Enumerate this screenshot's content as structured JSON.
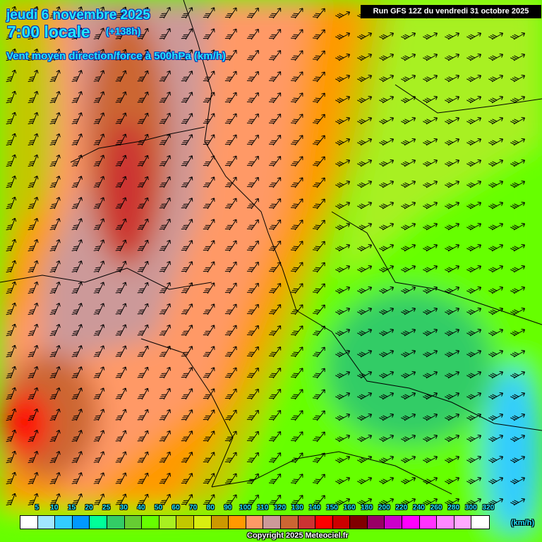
{
  "header": {
    "date": "jeudi 6 novembre 2025",
    "time": "7:00 locale",
    "offset": "(+138h)",
    "parameter": "Vent moyen direction/force à 500hPa (km/h)",
    "run": "Run GFS 12Z du vendredi 31 octobre 2025"
  },
  "legend": {
    "labels": [
      "5",
      "10",
      "15",
      "20",
      "25",
      "30",
      "40",
      "50",
      "60",
      "70",
      "80",
      "90",
      "100",
      "110",
      "120",
      "130",
      "140",
      "150",
      "160",
      "180",
      "200",
      "220",
      "240",
      "260",
      "280",
      "300",
      "320"
    ],
    "colors": [
      "#ffffff",
      "#a0e6ff",
      "#33ccff",
      "#0099ff",
      "#00ff99",
      "#33cc66",
      "#66cc33",
      "#66ff00",
      "#a8f020",
      "#c2c800",
      "#d8ee10",
      "#cc9900",
      "#ff9900",
      "#ff9966",
      "#cc9999",
      "#cc6633",
      "#cc3333",
      "#ff0000",
      "#cc0000",
      "#800000",
      "#990066",
      "#cc00cc",
      "#ff00ff",
      "#ff33ff",
      "#ff88ff",
      "#ffaaff",
      "#ffffff"
    ],
    "unit": "(km/h)"
  },
  "copyright": "Copyright 2025 Meteociel.fr",
  "map": {
    "wind_symbol": "wind-barb-icon",
    "borders": "country-borders"
  }
}
